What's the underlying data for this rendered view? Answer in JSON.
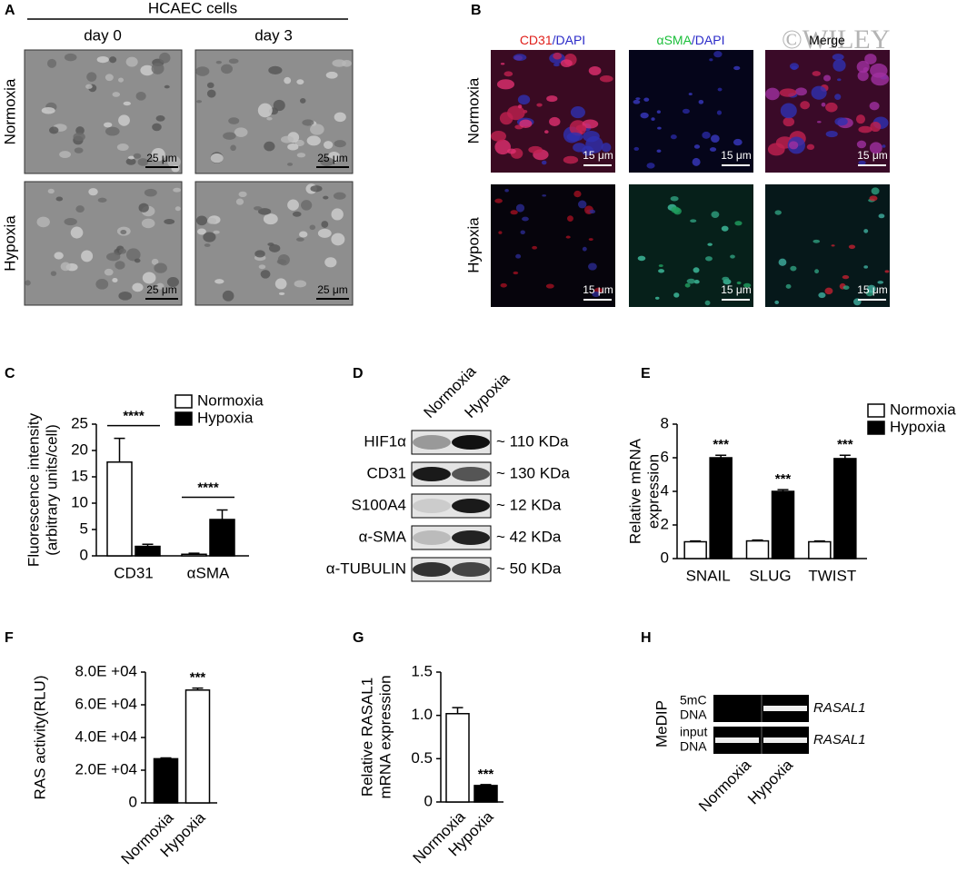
{
  "panels": {
    "A": {
      "label": "A",
      "title": "HCAEC cells",
      "columns": [
        "day 0",
        "day 3"
      ],
      "rows": [
        "Normoxia",
        "Hypoxia"
      ],
      "scale_bar": "25 μm"
    },
    "B": {
      "label": "B",
      "columns": [
        [
          "CD31",
          "/DAPI"
        ],
        [
          "αSMA",
          "/DAPI"
        ],
        [
          "Merge"
        ]
      ],
      "rows": [
        "Normoxia",
        "Hypoxia"
      ],
      "scale_bar": "15 μm",
      "watermark": "©WILEY"
    },
    "C": {
      "label": "C"
    },
    "D": {
      "label": "D",
      "columns": [
        "Normoxia",
        "Hypoxia"
      ],
      "rows": [
        {
          "protein": "HIF1α",
          "size": "~ 110 KDa"
        },
        {
          "protein": "CD31",
          "size": "~ 130 KDa"
        },
        {
          "protein": "S100A4",
          "size": "~ 12 KDa"
        },
        {
          "protein": "α-SMA",
          "size": "~ 42 KDa"
        },
        {
          "protein": "α-TUBULIN",
          "size": "~ 50 KDa"
        }
      ]
    },
    "E": {
      "label": "E"
    },
    "F": {
      "label": "F"
    },
    "G": {
      "label": "G"
    },
    "H": {
      "label": "H",
      "method": "MeDIP",
      "columns": [
        "Normoxia",
        "Hypoxia"
      ],
      "rows": [
        {
          "label": [
            "5mC",
            "DNA"
          ],
          "gene": "RASAL1"
        },
        {
          "label": [
            "input",
            "DNA"
          ],
          "gene": "RASAL1"
        }
      ]
    }
  },
  "chart_data": [
    {
      "type": "bar",
      "ylabel": [
        "Fluorescence intensity",
        "(arbitrary units/cell)"
      ],
      "categories": [
        "CD31",
        "αSMA"
      ],
      "series": [
        {
          "name": "Normoxia",
          "color": "#ffffff",
          "values": [
            17.8,
            0.3
          ],
          "errors": [
            4.5,
            0.2
          ]
        },
        {
          "name": "Hypoxia",
          "color": "#000000",
          "values": [
            1.8,
            6.9
          ],
          "errors": [
            0.4,
            1.8
          ]
        }
      ],
      "ylim": [
        0,
        25
      ],
      "yticks": [
        0,
        5,
        10,
        15,
        20,
        25
      ],
      "annotations": [
        "****",
        "****"
      ]
    },
    {
      "type": "bar",
      "ylabel": [
        "Relative mRNA",
        "expression"
      ],
      "categories": [
        "SNAIL",
        "SLUG",
        "TWIST"
      ],
      "series": [
        {
          "name": "Normoxia",
          "color": "#ffffff",
          "values": [
            1,
            1.05,
            1
          ],
          "errors": [
            0.05,
            0.05,
            0.05
          ]
        },
        {
          "name": "Hypoxia",
          "color": "#000000",
          "values": [
            6,
            4,
            5.95
          ],
          "errors": [
            0.15,
            0.1,
            0.2
          ]
        }
      ],
      "ylim": [
        0,
        8
      ],
      "yticks": [
        0,
        2,
        4,
        6,
        8
      ],
      "annotations": [
        "***",
        "***",
        "***"
      ]
    },
    {
      "type": "bar",
      "ylabel": [
        "RAS activity(RLU)"
      ],
      "categories": [
        "Normoxia",
        "Hypoxia"
      ],
      "values": [
        27000,
        69000
      ],
      "errors": [
        500,
        1200
      ],
      "colors": [
        "#000000",
        "#ffffff"
      ],
      "ylim": [
        0,
        80000
      ],
      "yticks": [
        0,
        {
          "value": 20000,
          "label": "2.0E +04"
        },
        {
          "value": 40000,
          "label": "4.0E +04"
        },
        {
          "value": 60000,
          "label": "6.0E +04"
        },
        {
          "value": 80000,
          "label": "8.0E +04"
        }
      ],
      "annotations": [
        "***"
      ]
    },
    {
      "type": "bar",
      "ylabel": [
        "Relative RASAL1",
        "mRNA expression"
      ],
      "categories": [
        "Normoxia",
        "Hypoxia"
      ],
      "values": [
        1.02,
        0.19
      ],
      "errors": [
        0.07,
        0.01
      ],
      "colors": [
        "#ffffff",
        "#000000"
      ],
      "ylim": [
        0,
        1.5
      ],
      "yticks": [
        0,
        0.5,
        {
          "value": 1,
          "label": "1.0"
        },
        1.5
      ],
      "annotations": [
        "***"
      ]
    }
  ]
}
